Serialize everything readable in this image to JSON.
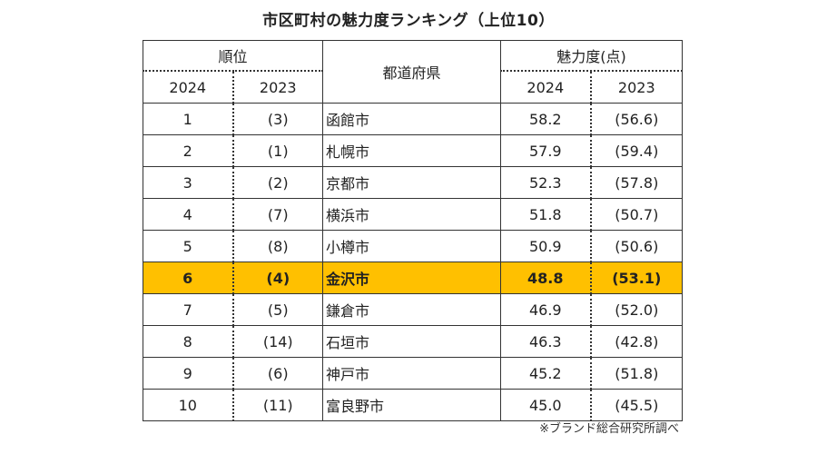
{
  "title": "市区町村の魅力度ランキング（上位10）",
  "header": {
    "rank_group": "順位",
    "prefecture": "都道府県",
    "score_group": "魅力度(点)",
    "year_2024": "2024",
    "year_2023": "2023"
  },
  "rows": [
    {
      "rank2024": "1",
      "rank2023": "(3)",
      "city": "函館市",
      "score2024": "58.2",
      "score2023": "(56.6)"
    },
    {
      "rank2024": "2",
      "rank2023": "(1)",
      "city": "札幌市",
      "score2024": "57.9",
      "score2023": "(59.4)"
    },
    {
      "rank2024": "3",
      "rank2023": "(2)",
      "city": "京都市",
      "score2024": "52.3",
      "score2023": "(57.8)"
    },
    {
      "rank2024": "4",
      "rank2023": "(7)",
      "city": "横浜市",
      "score2024": "51.8",
      "score2023": "(50.7)"
    },
    {
      "rank2024": "5",
      "rank2023": "(8)",
      "city": "小樽市",
      "score2024": "50.9",
      "score2023": "(50.6)"
    },
    {
      "rank2024": "6",
      "rank2023": "(4)",
      "city": "金沢市",
      "score2024": "48.8",
      "score2023": "(53.1)"
    },
    {
      "rank2024": "7",
      "rank2023": "(5)",
      "city": "鎌倉市",
      "score2024": "46.9",
      "score2023": "(52.0)"
    },
    {
      "rank2024": "8",
      "rank2023": "(14)",
      "city": "石垣市",
      "score2024": "46.3",
      "score2023": "(42.8)"
    },
    {
      "rank2024": "9",
      "rank2023": "(6)",
      "city": "神戸市",
      "score2024": "45.2",
      "score2023": "(51.8)"
    },
    {
      "rank2024": "10",
      "rank2023": "(11)",
      "city": "富良野市",
      "score2024": "45.0",
      "score2023": "(45.5)"
    }
  ],
  "highlight_color": "#ffc000",
  "source": "※ブランド総合研究所調べ"
}
